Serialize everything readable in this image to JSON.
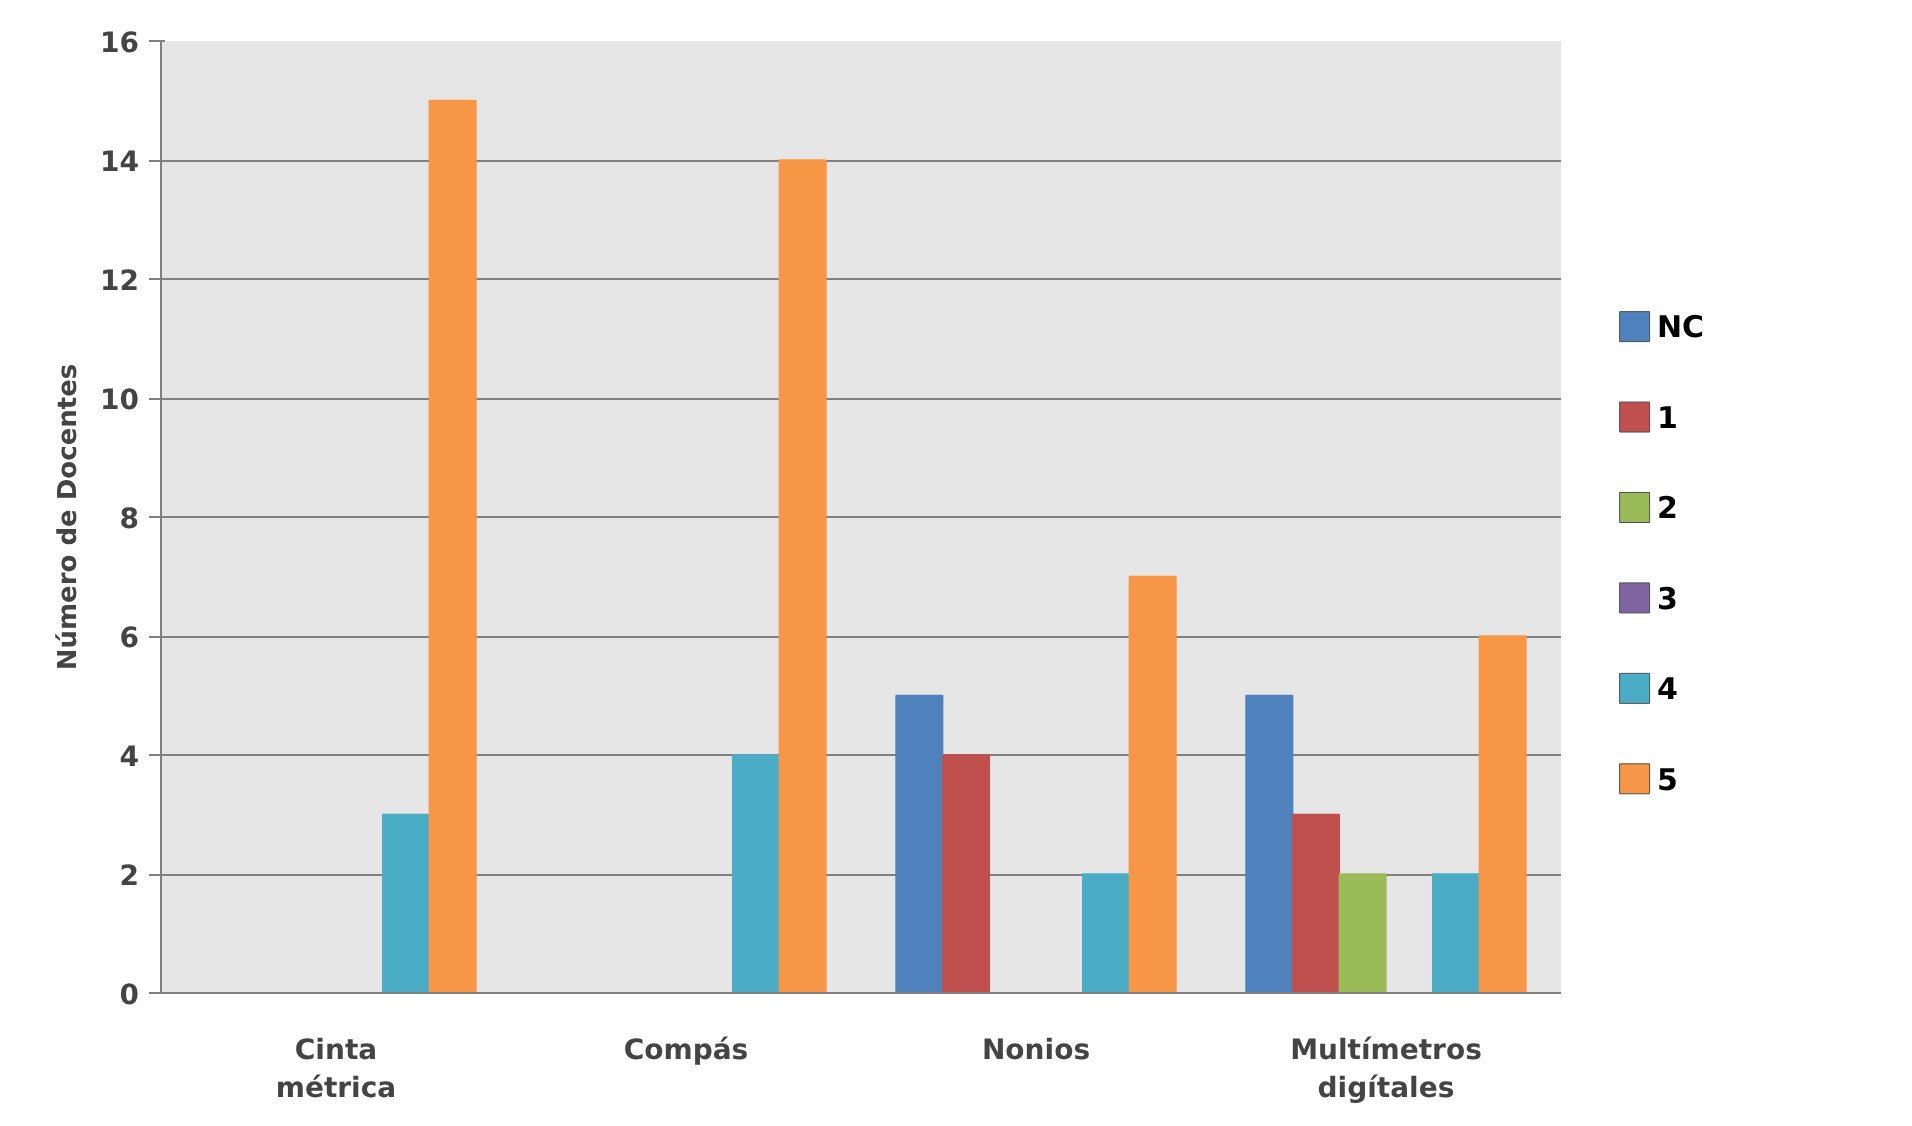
{
  "chart_data": {
    "type": "bar",
    "ylabel": "Número de Docentes",
    "categories": [
      "Cinta métrica",
      "Compás",
      "Nonios",
      "Multímetros digítales"
    ],
    "series": [
      {
        "name": "NC",
        "color": "#4f81bd",
        "values": [
          0,
          0,
          5,
          5
        ]
      },
      {
        "name": "1",
        "color": "#c0504d",
        "values": [
          0,
          0,
          4,
          3
        ]
      },
      {
        "name": "2",
        "color": "#9bbb59",
        "values": [
          0,
          0,
          0,
          2
        ]
      },
      {
        "name": "3",
        "color": "#8064a2",
        "values": [
          0,
          0,
          0,
          0
        ]
      },
      {
        "name": "4",
        "color": "#4bacc6",
        "values": [
          3,
          4,
          2,
          2
        ]
      },
      {
        "name": "5",
        "color": "#f79646",
        "values": [
          15,
          14,
          7,
          6
        ]
      }
    ],
    "ylim": [
      0,
      16
    ],
    "yticks": [
      0,
      2,
      4,
      6,
      8,
      10,
      12,
      14,
      16
    ],
    "grid": "y",
    "legend": "right"
  }
}
